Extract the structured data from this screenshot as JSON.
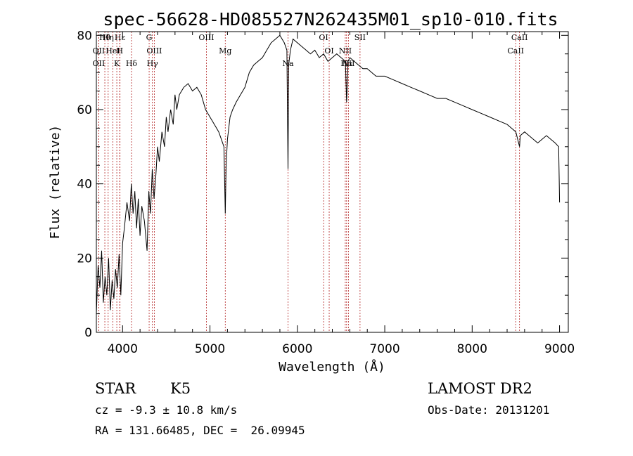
{
  "title": "spec-56628-HD085527N262435M01_sp10-010.fits",
  "info": {
    "object_class": "STAR",
    "subclass": "K5",
    "survey": "LAMOST DR2",
    "redshift": "cz = -9.3 ± 10.8 km/s",
    "obs_date": "Obs-Date: 20131201",
    "coords": "RA = 131.66485, DEC =  26.09945"
  },
  "chart_data": {
    "type": "line",
    "title": "spec-56628-HD085527N262435M01_sp10-010.fits",
    "xlabel": "Wavelength (Å)",
    "ylabel": "Flux (relative)",
    "xlim": [
      3700,
      9100
    ],
    "ylim": [
      0,
      81
    ],
    "xticks": [
      4000,
      5000,
      6000,
      7000,
      8000,
      9000
    ],
    "yticks": [
      0,
      20,
      40,
      60,
      80
    ],
    "grid": false,
    "colors": {
      "spectrum": "#000000",
      "line_markers": "#b22222"
    },
    "series": [
      {
        "x": [
          3700,
          3720,
          3740,
          3760,
          3780,
          3800,
          3820,
          3840,
          3860,
          3880,
          3900,
          3920,
          3940,
          3960,
          3980,
          4000,
          4020,
          4050,
          4080,
          4100,
          4120,
          4140,
          4160,
          4180,
          4200,
          4220,
          4250,
          4280,
          4300,
          4320,
          4340,
          4360,
          4380,
          4400,
          4420,
          4450,
          4480,
          4500,
          4520,
          4550,
          4580,
          4600,
          4620,
          4650,
          4700,
          4750,
          4800,
          4850,
          4900,
          4950,
          5000,
          5050,
          5100,
          5130,
          5160,
          5175,
          5185,
          5200,
          5230,
          5260,
          5300,
          5350,
          5400,
          5450,
          5500,
          5550,
          5600,
          5650,
          5700,
          5750,
          5800,
          5850,
          5880,
          5893,
          5900,
          5920,
          5950,
          6000,
          6050,
          6100,
          6150,
          6200,
          6250,
          6300,
          6350,
          6400,
          6450,
          6500,
          6550,
          6563,
          6580,
          6600,
          6650,
          6700,
          6750,
          6800,
          6850,
          6900,
          6950,
          7000,
          7100,
          7200,
          7300,
          7400,
          7500,
          7600,
          7700,
          7800,
          7900,
          8000,
          8100,
          8200,
          8300,
          8400,
          8450,
          8500,
          8542,
          8550,
          8600,
          8650,
          8700,
          8750,
          8800,
          8850,
          8900,
          8950,
          8990,
          9000
        ],
        "y": [
          5,
          18,
          12,
          22,
          8,
          15,
          10,
          20,
          6,
          14,
          9,
          17,
          12,
          21,
          10,
          24,
          28,
          35,
          30,
          40,
          32,
          38,
          28,
          36,
          26,
          34,
          30,
          22,
          38,
          32,
          44,
          36,
          42,
          50,
          46,
          54,
          50,
          58,
          54,
          60,
          56,
          64,
          60,
          64,
          66,
          67,
          65,
          66,
          64,
          60,
          58,
          56,
          54,
          52,
          50,
          32,
          45,
          52,
          58,
          60,
          62,
          64,
          66,
          70,
          72,
          73,
          74,
          76,
          78,
          79,
          80,
          78,
          76,
          44,
          72,
          76,
          79,
          78,
          77,
          76,
          75,
          76,
          74,
          75,
          73,
          74,
          75,
          74,
          73,
          62,
          73,
          74,
          73,
          72,
          71,
          71,
          70,
          69,
          69,
          69,
          68,
          67,
          66,
          65,
          64,
          63,
          63,
          62,
          61,
          60,
          59,
          58,
          57,
          56,
          55,
          54,
          50,
          53,
          54,
          53,
          52,
          51,
          52,
          53,
          52,
          51,
          50,
          35
        ]
      }
    ],
    "spectral_lines": [
      {
        "label": "Hθ",
        "x": 3797
      },
      {
        "label": "OII",
        "x": 3727
      },
      {
        "label": "OII",
        "x": 3727
      },
      {
        "label": "Hε",
        "x": 3970
      },
      {
        "label": "HeI",
        "x": 3889
      },
      {
        "label": "K",
        "x": 3934
      },
      {
        "label": "Hη",
        "x": 3835
      },
      {
        "label": "H",
        "x": 3968
      },
      {
        "label": "Hδ",
        "x": 4102
      },
      {
        "label": "G",
        "x": 4304
      },
      {
        "label": "OIII",
        "x": 4363
      },
      {
        "label": "Hγ",
        "x": 4341
      },
      {
        "label": "OIII",
        "x": 4959
      },
      {
        "label": "Mg",
        "x": 5175
      },
      {
        "label": "Na",
        "x": 5893
      },
      {
        "label": "OI",
        "x": 6300
      },
      {
        "label": "OI",
        "x": 6364
      },
      {
        "label": "Hα",
        "x": 6563
      },
      {
        "label": "SII",
        "x": 6717
      },
      {
        "label": "NII",
        "x": 6548
      },
      {
        "label": "NII",
        "x": 6584
      },
      {
        "label": "CaII",
        "x": 8542
      },
      {
        "label": "CaII",
        "x": 8498
      }
    ]
  }
}
